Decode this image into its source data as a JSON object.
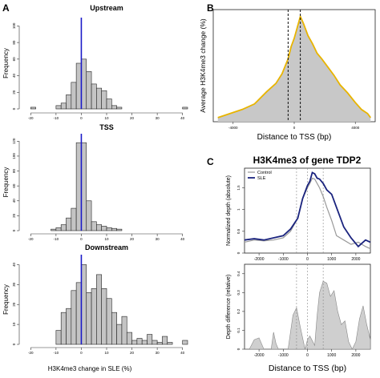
{
  "panel_labels": [
    "A",
    "B",
    "C"
  ],
  "colors": {
    "bar_fill": "#c4c4c4",
    "bar_stroke": "#222222",
    "zero_line": "#1a1ac8",
    "profile_outline": "#e8b400",
    "profile_fill": "#c8c8c8",
    "tdp2_control": "#999999",
    "tdp2_sle": "#1a237e",
    "difference_fill": "#cfcfcf"
  },
  "chart_data": [
    {
      "id": "A-upstream",
      "type": "bar",
      "title": "Upstream",
      "xlabel": "",
      "ylabel": "Frequency",
      "xlim": [
        -22,
        42
      ],
      "ylim": [
        0,
        110
      ],
      "xticks": [
        -20,
        -10,
        0,
        10,
        20,
        30,
        40
      ],
      "yticks": [
        0,
        20,
        40,
        60,
        80,
        100
      ],
      "bin_width": 2,
      "bins_start": [
        -20,
        -18,
        -16,
        -14,
        -12,
        -10,
        -8,
        -6,
        -4,
        -2,
        0,
        2,
        4,
        6,
        8,
        10,
        12,
        14,
        16,
        18,
        20,
        22,
        24,
        26,
        28,
        30,
        32,
        34,
        36,
        38,
        40
      ],
      "values": [
        2,
        0,
        0,
        0,
        0,
        4,
        7,
        17,
        32,
        55,
        60,
        45,
        30,
        25,
        22,
        12,
        4,
        2,
        0,
        0,
        0,
        0,
        0,
        0,
        0,
        0,
        0,
        0,
        0,
        0,
        2
      ]
    },
    {
      "id": "A-tss",
      "type": "bar",
      "title": "TSS",
      "xlabel": "",
      "ylabel": "Frequency",
      "xlim": [
        -22,
        42
      ],
      "ylim": [
        0,
        130
      ],
      "xticks": [
        -20,
        -10,
        0,
        10,
        20,
        30,
        40
      ],
      "yticks": [
        0,
        20,
        40,
        60,
        80,
        100,
        120
      ],
      "bin_width": 2,
      "bins_start": [
        -20,
        -18,
        -16,
        -14,
        -12,
        -10,
        -8,
        -6,
        -4,
        -2,
        0,
        2,
        4,
        6,
        8,
        10,
        12,
        14,
        16,
        18,
        20,
        22,
        24,
        26,
        28,
        30,
        32,
        34,
        36,
        38,
        40
      ],
      "values": [
        0,
        0,
        0,
        0,
        2,
        4,
        8,
        17,
        30,
        118,
        118,
        40,
        12,
        8,
        6,
        4,
        3,
        2,
        0,
        0,
        0,
        0,
        0,
        0,
        0,
        0,
        0,
        0,
        0,
        0,
        0
      ]
    },
    {
      "id": "A-downstream",
      "type": "bar",
      "title": "Downstream",
      "xlabel": "H3K4me3 change in SLE (%)",
      "ylabel": "Frequency",
      "xlim": [
        -22,
        42
      ],
      "ylim": [
        0,
        45
      ],
      "xticks": [
        -20,
        -10,
        0,
        10,
        20,
        30,
        40
      ],
      "yticks": [
        0,
        10,
        20,
        30,
        40
      ],
      "bin_width": 2,
      "bins_start": [
        -20,
        -18,
        -16,
        -14,
        -12,
        -10,
        -8,
        -6,
        -4,
        -2,
        0,
        2,
        4,
        6,
        8,
        10,
        12,
        14,
        16,
        18,
        20,
        22,
        24,
        26,
        28,
        30,
        32,
        34,
        36,
        38,
        40
      ],
      "values": [
        0,
        0,
        0,
        0,
        0,
        7,
        16,
        18,
        27,
        31,
        40,
        26,
        28,
        35,
        28,
        23,
        16,
        10,
        14,
        6,
        2,
        3,
        2,
        5,
        2,
        1,
        4,
        1,
        0,
        0,
        2
      ]
    },
    {
      "id": "B",
      "type": "area",
      "title": "",
      "xlabel": "Distance to TSS (bp)",
      "ylabel": "Average H3K4me3 change (%)",
      "xlim": [
        -5300,
        5300
      ],
      "ylim": [
        0,
        8.2
      ],
      "xticks": [
        -4000,
        0,
        4000
      ],
      "vlines": [
        -400,
        400
      ],
      "x": [
        -5000,
        -4200,
        -3400,
        -2600,
        -1800,
        -1200,
        -800,
        -400,
        -200,
        0,
        200,
        400,
        600,
        900,
        1200,
        1500,
        1800,
        2200,
        2600,
        3000,
        3500,
        4000,
        4400,
        4800,
        5000
      ],
      "y": [
        0.3,
        0.6,
        0.9,
        1.3,
        2.2,
        2.8,
        3.5,
        4.6,
        5.5,
        6.1,
        6.9,
        7.7,
        7.2,
        6.3,
        5.7,
        5.0,
        4.6,
        4.0,
        3.4,
        2.7,
        2.1,
        1.4,
        0.9,
        0.6,
        0.3
      ]
    },
    {
      "id": "C-top",
      "type": "line",
      "title": "H3K4me3 of gene TDP2",
      "xlabel": "",
      "ylabel": "Normalized depth (absolute)",
      "xlim": [
        -2600,
        2600
      ],
      "ylim": [
        0,
        1.95
      ],
      "xticks": [
        -2000,
        -1000,
        0,
        1000,
        2000
      ],
      "yticks": [
        0,
        0.5,
        1.0,
        1.5
      ],
      "vlines": [
        -450,
        0,
        650
      ],
      "legend": [
        "Control",
        "SLE"
      ],
      "legend_position": "top-left",
      "x": [
        -2600,
        -2200,
        -1800,
        -1400,
        -1000,
        -700,
        -400,
        -200,
        0,
        100,
        200,
        300,
        400,
        500,
        650,
        800,
        1000,
        1200,
        1500,
        1800,
        2100,
        2400,
        2600
      ],
      "series": [
        {
          "name": "Control",
          "values": [
            0.25,
            0.3,
            0.28,
            0.3,
            0.35,
            0.5,
            0.8,
            1.25,
            1.5,
            1.6,
            1.72,
            1.7,
            1.6,
            1.5,
            1.3,
            1.05,
            0.75,
            0.4,
            0.3,
            0.2,
            0.25,
            0.15,
            0.1
          ]
        },
        {
          "name": "SLE",
          "values": [
            0.3,
            0.33,
            0.3,
            0.35,
            0.4,
            0.55,
            0.8,
            1.25,
            1.55,
            1.65,
            1.85,
            1.82,
            1.72,
            1.7,
            1.6,
            1.45,
            1.35,
            1.05,
            0.6,
            0.35,
            0.15,
            0.3,
            0.25
          ]
        }
      ]
    },
    {
      "id": "C-bottom",
      "type": "area",
      "title": "",
      "xlabel": "Distance to TSS (bp)",
      "ylabel": "Depth difference (relative)",
      "xlim": [
        -2600,
        2600
      ],
      "ylim": [
        0,
        0.45
      ],
      "xticks": [
        -2000,
        -1000,
        0,
        1000,
        2000
      ],
      "yticks": [
        0,
        0.1,
        0.2,
        0.3,
        0.4
      ],
      "vlines": [
        -450,
        0,
        650
      ],
      "x": [
        -2600,
        -2400,
        -2200,
        -2000,
        -1900,
        -1800,
        -1500,
        -1400,
        -1300,
        -1200,
        -1000,
        -800,
        -600,
        -450,
        -300,
        -100,
        0,
        100,
        300,
        400,
        500,
        650,
        800,
        950,
        1100,
        1250,
        1400,
        1550,
        1700,
        1850,
        2000,
        2150,
        2300,
        2450,
        2600
      ],
      "y": [
        0,
        0,
        0.05,
        0.06,
        0.03,
        0,
        0,
        0.09,
        0.03,
        0,
        0,
        0,
        0.18,
        0.22,
        0.12,
        0,
        0.05,
        0.07,
        0.02,
        0.18,
        0.3,
        0.36,
        0.35,
        0.28,
        0.31,
        0.2,
        0.13,
        0.15,
        0.04,
        0,
        0.04,
        0.16,
        0.23,
        0.13,
        0.05
      ]
    }
  ]
}
